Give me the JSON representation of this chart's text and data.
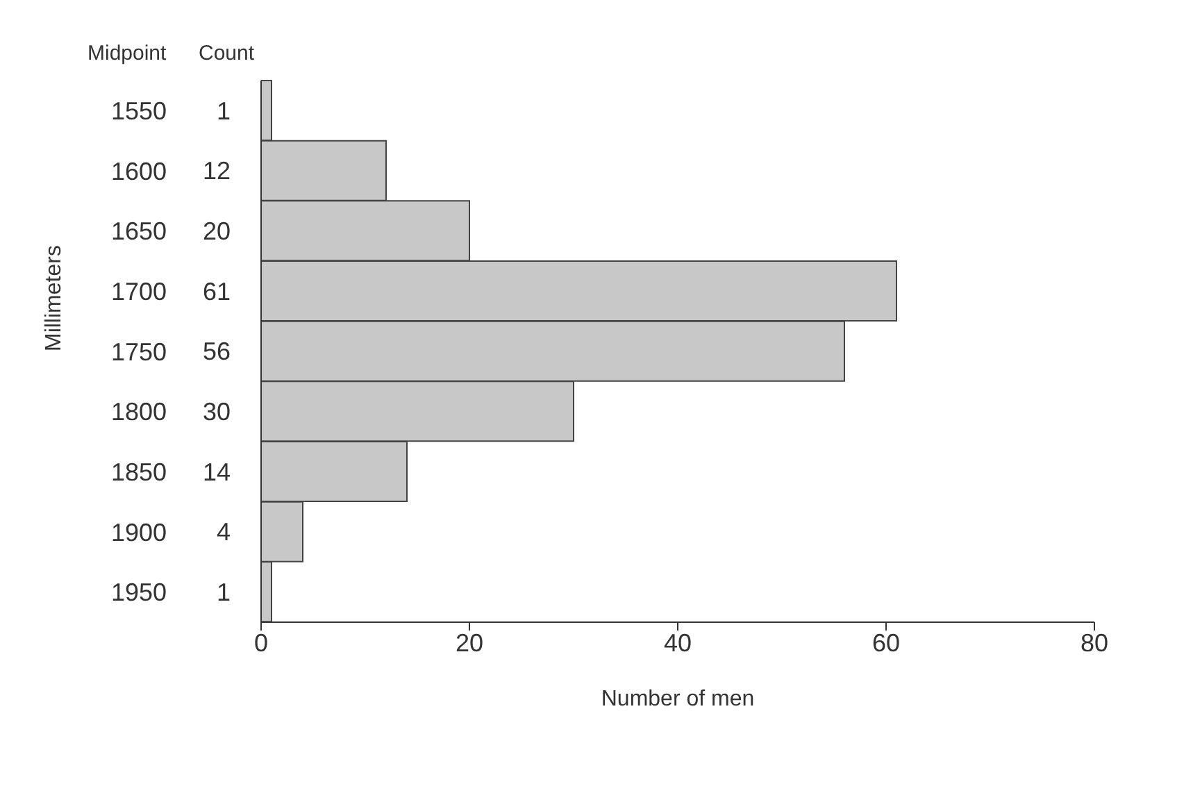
{
  "chart_data": {
    "type": "bar",
    "orientation": "horizontal",
    "xlabel": "Number of men",
    "ylabel": "Millimeters",
    "annotations": [
      "Midpoint",
      "Count"
    ],
    "categories": [
      "1550",
      "1600",
      "1650",
      "1700",
      "1750",
      "1800",
      "1850",
      "1900",
      "1950"
    ],
    "values": [
      1,
      12,
      20,
      61,
      56,
      30,
      14,
      4,
      1
    ],
    "color": "#c8c8c8",
    "data_labels": true,
    "xlim": [
      0,
      80
    ],
    "xticks": [
      0,
      20,
      40,
      60,
      80
    ],
    "grid": false
  }
}
